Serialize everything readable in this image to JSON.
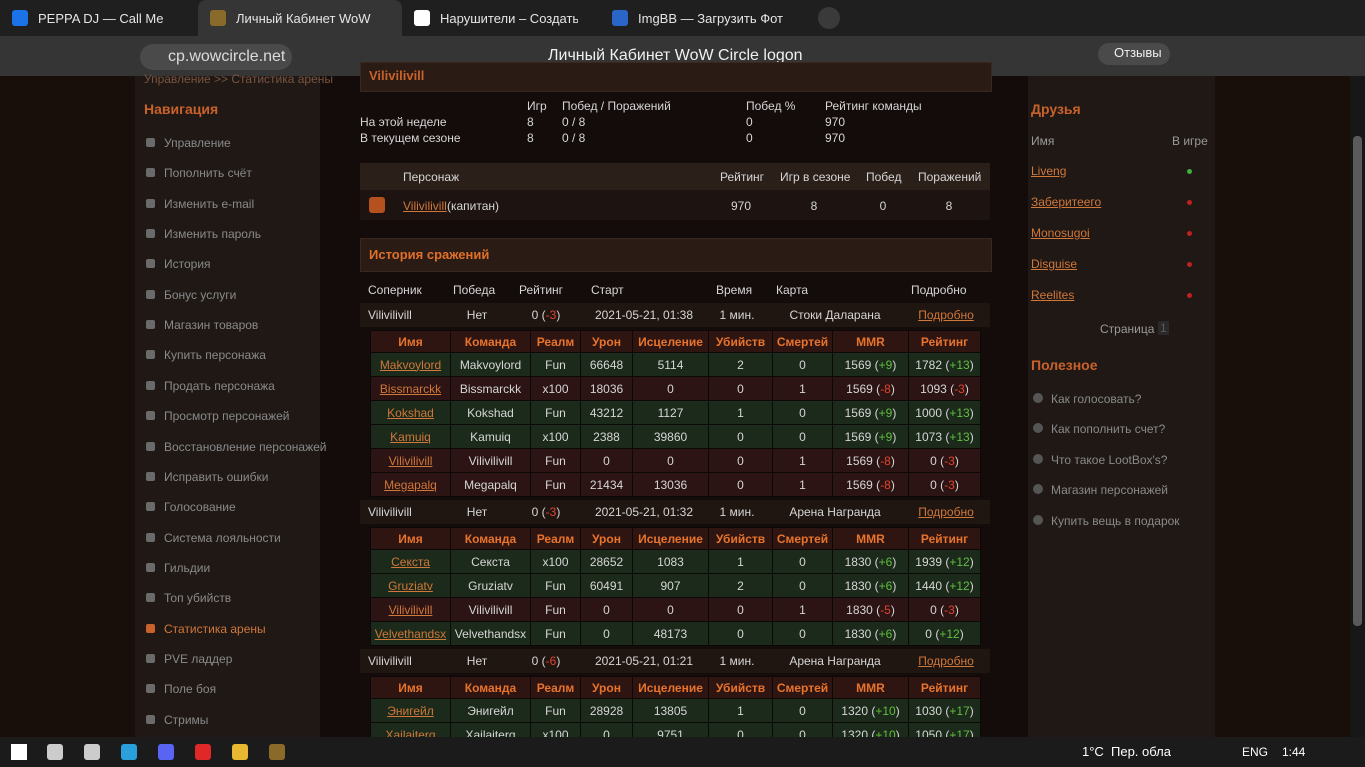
{
  "browser": {
    "tabs": [
      "PEPPA DJ — Call Me",
      "Личный Кабинет WoW",
      "Нарушители – Создать нс",
      "ImgBB — Загрузить Фото"
    ],
    "url": "cp.wowcircle.net",
    "page_title": "Личный Кабинет WoW Circle logon",
    "reviews": "Отзывы"
  },
  "breadcrumb": "Управление >> Статистика арены",
  "nav": {
    "title": "Навигация",
    "active": 16,
    "items": [
      "Управление",
      "Пополнить счёт",
      "Изменить e-mail",
      "Изменить пароль",
      "История",
      "Бонус услуги",
      "Магазин товаров",
      "Купить персонажа",
      "Продать персонажа",
      "Просмотр персонажей",
      "Восстановление персонажей",
      "Исправить ошибки",
      "Голосование",
      "Система лояльности",
      "Гильдии",
      "Топ убийств",
      "Статистика арены",
      "PVE ладдер",
      "Поле боя",
      "Стримы"
    ]
  },
  "team": {
    "name": "Vilivilivill",
    "headers": [
      "Игр",
      "Побед / Поражений",
      "Побед %",
      "Рейтинг команды"
    ],
    "rows": [
      {
        "label": "На этой неделе",
        "games": 8,
        "wl": "0 / 8",
        "pct": 0,
        "rating": 970
      },
      {
        "label": "В текущем сезоне",
        "games": 8,
        "wl": "0 / 8",
        "pct": 0,
        "rating": 970
      }
    ]
  },
  "members": {
    "headers": [
      "Персонаж",
      "Рейтинг",
      "Игр в сезоне",
      "Побед",
      "Поражений"
    ],
    "rows": [
      {
        "name": "Vilivilivill",
        "role": "(капитан)",
        "rating": 970,
        "games": 8,
        "wins": 0,
        "losses": 8
      }
    ]
  },
  "history": {
    "title": "История сражений",
    "headers": [
      "Соперник",
      "Победа",
      "Рейтинг",
      "Старт",
      "Время",
      "Карта",
      "Подробно"
    ],
    "player_headers": [
      "Имя",
      "Команда",
      "Реалм",
      "Урон",
      "Исцеление",
      "Убийств",
      "Смертей",
      "MMR",
      "Рейтинг"
    ],
    "matches": [
      {
        "opponent": "Vilivilivill",
        "win": "Нет",
        "rating": 0,
        "change": "-3",
        "start": "2021-05-21, 01:38",
        "time": "1 мин.",
        "map": "Стоки Даларана",
        "link": "Подробно",
        "players": [
          {
            "name": "Makvoylord",
            "team": "Makvoylord",
            "realm": "Fun",
            "damage": 66648,
            "healing": 5114,
            "kills": 2,
            "deaths": 0,
            "mmr": 1569,
            "mmr_change": "+9",
            "rating": 1782,
            "rating_change": "+13"
          },
          {
            "name": "Bissmarckk",
            "team": "Bissmarckk",
            "realm": "x100",
            "damage": 18036,
            "healing": 0,
            "kills": 0,
            "deaths": 1,
            "mmr": 1569,
            "mmr_change": "-8",
            "rating": 1093,
            "rating_change": "-3"
          },
          {
            "name": "Kokshad",
            "team": "Kokshad",
            "realm": "Fun",
            "damage": 43212,
            "healing": 1127,
            "kills": 1,
            "deaths": 0,
            "mmr": 1569,
            "mmr_change": "+9",
            "rating": 1000,
            "rating_change": "+13"
          },
          {
            "name": "Kamuiq",
            "team": "Kamuiq",
            "realm": "x100",
            "damage": 2388,
            "healing": 39860,
            "kills": 0,
            "deaths": 0,
            "mmr": 1569,
            "mmr_change": "+9",
            "rating": 1073,
            "rating_change": "+13"
          },
          {
            "name": "Vilivilivill",
            "team": "Vilivilivill",
            "realm": "Fun",
            "damage": 0,
            "healing": 0,
            "kills": 0,
            "deaths": 1,
            "mmr": 1569,
            "mmr_change": "-8",
            "rating": 0,
            "rating_change": "-3"
          },
          {
            "name": "Megapalq",
            "team": "Megapalq",
            "realm": "Fun",
            "damage": 21434,
            "healing": 13036,
            "kills": 0,
            "deaths": 1,
            "mmr": 1569,
            "mmr_change": "-8",
            "rating": 0,
            "rating_change": "-3"
          }
        ]
      },
      {
        "opponent": "Vilivilivill",
        "win": "Нет",
        "rating": 0,
        "change": "-3",
        "start": "2021-05-21, 01:32",
        "time": "1 мин.",
        "map": "Арена Награнда",
        "link": "Подробно",
        "players": [
          {
            "name": "Секста",
            "team": "Секста",
            "realm": "x100",
            "damage": 28652,
            "healing": 1083,
            "kills": 1,
            "deaths": 0,
            "mmr": 1830,
            "mmr_change": "+6",
            "rating": 1939,
            "rating_change": "+12"
          },
          {
            "name": "Gruziatv",
            "team": "Gruziatv",
            "realm": "Fun",
            "damage": 60491,
            "healing": 907,
            "kills": 2,
            "deaths": 0,
            "mmr": 1830,
            "mmr_change": "+6",
            "rating": 1440,
            "rating_change": "+12"
          },
          {
            "name": "Vilivilivill",
            "team": "Vilivilivill",
            "realm": "Fun",
            "damage": 0,
            "healing": 0,
            "kills": 0,
            "deaths": 1,
            "mmr": 1830,
            "mmr_change": "-5",
            "rating": 0,
            "rating_change": "-3"
          },
          {
            "name": "Velvethandsx",
            "team": "Velvethandsx",
            "realm": "Fun",
            "damage": 0,
            "healing": 48173,
            "kills": 0,
            "deaths": 0,
            "mmr": 1830,
            "mmr_change": "+6",
            "rating": 0,
            "rating_change": "+12"
          }
        ]
      },
      {
        "opponent": "Vilivilivill",
        "win": "Нет",
        "rating": 0,
        "change": "-6",
        "start": "2021-05-21, 01:21",
        "time": "1 мин.",
        "map": "Арена Награнда",
        "link": "Подробно",
        "players": [
          {
            "name": "Энигейл",
            "team": "Энигейл",
            "realm": "Fun",
            "damage": 28928,
            "healing": 13805,
            "kills": 1,
            "deaths": 0,
            "mmr": 1320,
            "mmr_change": "+10",
            "rating": 1030,
            "rating_change": "+17"
          },
          {
            "name": "Xailaiterq",
            "team": "Xailaiterq",
            "realm": "x100",
            "damage": 0,
            "healing": 9751,
            "kills": 0,
            "deaths": 0,
            "mmr": 1320,
            "mmr_change": "+10",
            "rating": 1050,
            "rating_change": "+17"
          }
        ]
      }
    ]
  },
  "friends": {
    "title": "Друзья",
    "headers": [
      "Имя",
      "В игре"
    ],
    "list": [
      {
        "name": "Liveng",
        "online": true
      },
      {
        "name": "Заберитеего",
        "online": false
      },
      {
        "name": "Monosugoi",
        "online": false
      },
      {
        "name": "Disguise",
        "online": false
      },
      {
        "name": "Reelites",
        "online": false
      }
    ],
    "page_label": "Страница",
    "page": 1
  },
  "useful": {
    "title": "Полезное",
    "items": [
      "Как голосовать?",
      "Как пополнить счет?",
      "Что такое LootBox's?",
      "Магазин персонажей",
      "Купить вещь в подарок"
    ]
  },
  "taskbar": {
    "temperature": "1°C",
    "weather": "Пер. обла",
    "lang": "ENG",
    "time": "1:44"
  }
}
